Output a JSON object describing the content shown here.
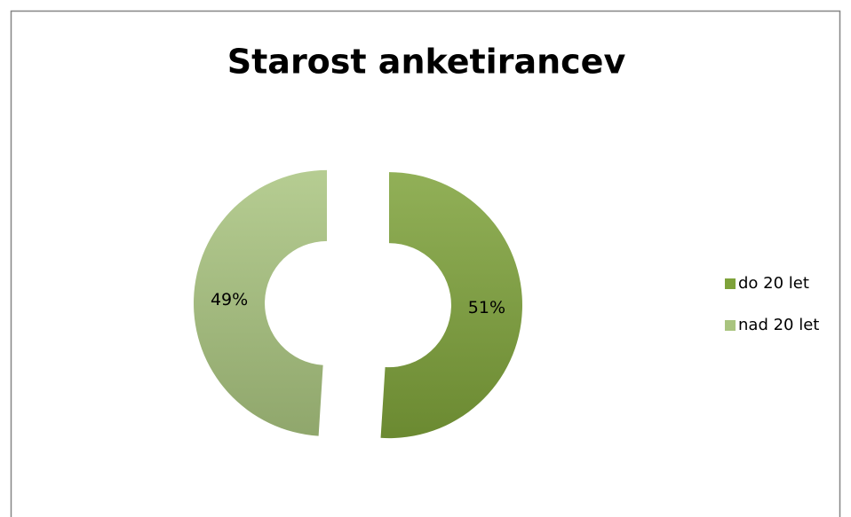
{
  "chart_data": {
    "type": "doughnut",
    "title": "Starost anketirancev",
    "categories": [
      "do 20 let",
      "nad 20 let"
    ],
    "values": [
      51,
      49
    ],
    "value_labels": [
      "51%",
      "49%"
    ],
    "colors": [
      "#7ea23a",
      "#a9c47f"
    ],
    "exploded": true,
    "legend": "right"
  }
}
